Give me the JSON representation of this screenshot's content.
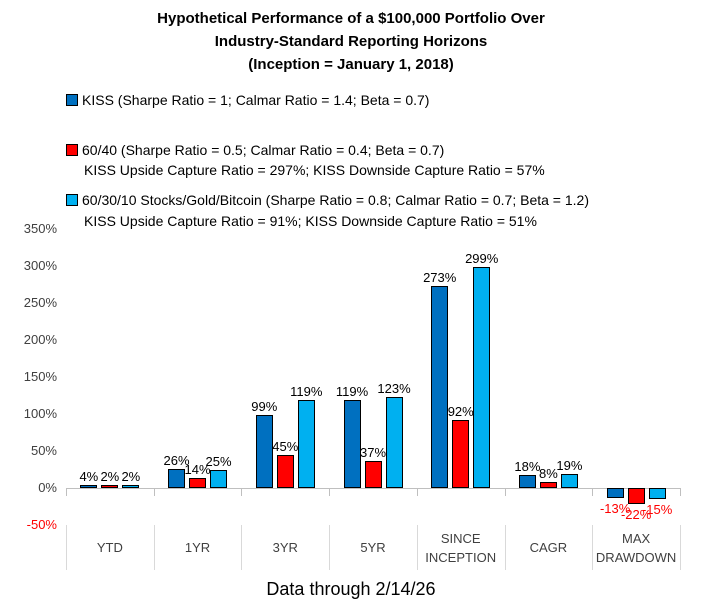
{
  "title": {
    "lines": [
      "Hypothetical Performance of a $100,000 Portfolio Over",
      "Industry-Standard Reporting Horizons",
      "(Inception = January 1, 2018)"
    ]
  },
  "legend": {
    "items": [
      {
        "label": "KISS (Sharpe Ratio = 1; Calmar Ratio = 1.4; Beta = 0.7)",
        "color": "#0070C0",
        "subline": ""
      },
      {
        "label": "60/40 (Sharpe Ratio = 0.5; Calmar Ratio = 0.4; Beta = 0.7)",
        "color": "#FF0000",
        "subline": "KISS Upside Capture Ratio = 297%; KISS Downside Capture Ratio = 57%"
      },
      {
        "label": "60/30/10 Stocks/Gold/Bitcoin (Sharpe Ratio = 0.8; Calmar Ratio = 0.7; Beta = 1.2)",
        "color": "#00B0F0",
        "subline": "KISS Upside Capture Ratio = 91%; KISS Downside Capture Ratio = 51%"
      }
    ]
  },
  "chart_data": {
    "type": "bar",
    "title": "Hypothetical Performance of a $100,000 Portfolio Over Industry-Standard Reporting Horizons (Inception = January 1, 2018)",
    "categories": [
      "YTD",
      "1YR",
      "3YR",
      "5YR",
      "SINCE INCEPTION",
      "CAGR",
      "MAX DRAWDOWN"
    ],
    "series": [
      {
        "name": "KISS",
        "color": "#0070C0",
        "values": [
          4,
          26,
          99,
          119,
          273,
          18,
          -13
        ]
      },
      {
        "name": "60/40",
        "color": "#FF0000",
        "values": [
          2,
          14,
          45,
          37,
          92,
          8,
          -22
        ]
      },
      {
        "name": "60/30/10 Stocks/Gold/Bitcoin",
        "color": "#00B0F0",
        "values": [
          2,
          25,
          119,
          123,
          299,
          19,
          -15
        ]
      }
    ],
    "ylim": [
      -50,
      350
    ],
    "ytick_step": 50,
    "ytick_suffix": "%",
    "grid": false,
    "legend_position": "top-left",
    "data_labels": true,
    "label_suffix": "%",
    "positive_label_color": "#000000",
    "negative_label_color": "#FF0000",
    "negative_tick_color": "#FF0000",
    "axis_color": "#BFBFBF"
  },
  "footer": {
    "caption": "Data through 2/14/26"
  }
}
